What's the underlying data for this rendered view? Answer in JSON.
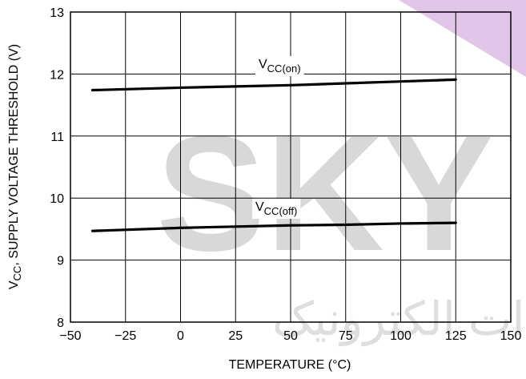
{
  "chart_data": {
    "type": "line",
    "xlabel": "TEMPERATURE (°C)",
    "ylabel": {
      "prefix": "V",
      "sub": "CC",
      "rest": ", SUPPLY VOLTAGE THRESHOLD (V)"
    },
    "xlim": [
      -50,
      150
    ],
    "ylim": [
      8,
      13
    ],
    "x_ticks": [
      -50,
      -25,
      0,
      25,
      50,
      75,
      100,
      125,
      150
    ],
    "y_ticks": [
      8,
      9,
      10,
      11,
      12,
      13
    ],
    "x_tick_labels": [
      "−50",
      "−25",
      "0",
      "25",
      "50",
      "75",
      "100",
      "125",
      "150"
    ],
    "y_tick_labels": [
      "8",
      "9",
      "10",
      "11",
      "12",
      "13"
    ],
    "grid": true,
    "series": [
      {
        "name": "VCC(on)",
        "label_main": "V",
        "label_sub": "CC(on)",
        "x": [
          -40,
          0,
          25,
          50,
          75,
          100,
          125
        ],
        "y": [
          11.74,
          11.78,
          11.8,
          11.82,
          11.85,
          11.88,
          11.91
        ]
      },
      {
        "name": "VCC(off)",
        "label_main": "V",
        "label_sub": "CC(off)",
        "x": [
          -40,
          0,
          25,
          50,
          75,
          100,
          125
        ],
        "y": [
          9.47,
          9.52,
          9.54,
          9.56,
          9.57,
          9.59,
          9.6
        ]
      }
    ]
  },
  "watermark": {
    "text": "SKY",
    "text_color": "#d8d8d8",
    "accent_color": "#e2c6e8",
    "script_text": "ماات الکترونیک"
  }
}
